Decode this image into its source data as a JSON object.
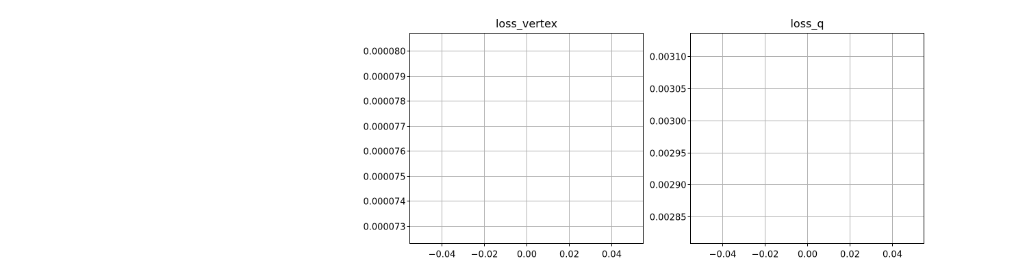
{
  "chart_data": [
    {
      "type": "line",
      "title": "loss_vertex",
      "xlabel": "",
      "ylabel": "",
      "x": [],
      "series": [],
      "xlim": [
        -0.055,
        0.055
      ],
      "ylim": [
        7.23e-05,
        8.07e-05
      ],
      "xticks": [
        -0.04,
        -0.02,
        0.0,
        0.02,
        0.04
      ],
      "xtick_labels": [
        "−0.04",
        "−0.02",
        "0.00",
        "0.02",
        "0.04"
      ],
      "yticks": [
        7.3e-05,
        7.4e-05,
        7.5e-05,
        7.6e-05,
        7.7e-05,
        7.8e-05,
        7.9e-05,
        8e-05
      ],
      "ytick_labels": [
        "0.000073",
        "0.000074",
        "0.000075",
        "0.000076",
        "0.000077",
        "0.000078",
        "0.000079",
        "0.000080"
      ],
      "grid": true
    },
    {
      "type": "line",
      "title": "loss_q",
      "xlabel": "",
      "ylabel": "",
      "x": [],
      "series": [],
      "xlim": [
        -0.055,
        0.055
      ],
      "ylim": [
        0.002808,
        0.003136
      ],
      "xticks": [
        -0.04,
        -0.02,
        0.0,
        0.02,
        0.04
      ],
      "xtick_labels": [
        "−0.04",
        "−0.02",
        "0.00",
        "0.02",
        "0.04"
      ],
      "yticks": [
        0.00285,
        0.0029,
        0.00295,
        0.003,
        0.00305,
        0.0031
      ],
      "ytick_labels": [
        "0.00285",
        "0.00290",
        "0.00295",
        "0.00300",
        "0.00305",
        "0.00310"
      ],
      "grid": true
    }
  ],
  "colors": {
    "grid": "#b0b0b0",
    "axes": "#000000",
    "background": "#ffffff"
  }
}
